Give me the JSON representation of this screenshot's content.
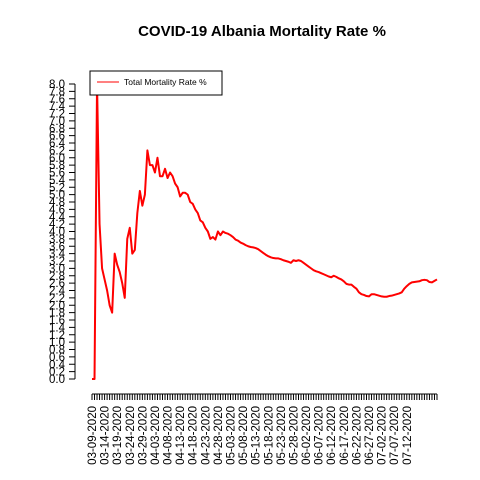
{
  "chart_data": {
    "type": "line",
    "title": "COVID-19 Albania Mortality Rate %",
    "xlabel": "",
    "ylabel": "",
    "ylim": [
      0,
      8.2
    ],
    "y_ticks": [
      "0.0",
      "0.2",
      "0.4",
      "0.6",
      "0.8",
      "1.0",
      "1.2",
      "1.4",
      "1.6",
      "1.8",
      "2.0",
      "2.2",
      "2.4",
      "2.6",
      "2.8",
      "3.0",
      "3.2",
      "3.4",
      "3.6",
      "3.8",
      "4.0",
      "4.2",
      "4.4",
      "4.6",
      "4.8",
      "5.0",
      "5.2",
      "5.4",
      "5.6",
      "5.8",
      "6.0",
      "6.2",
      "6.4",
      "6.6",
      "6.8",
      "7.0",
      "7.2",
      "7.4",
      "7.6",
      "7.8",
      "8.0"
    ],
    "x_labels": [
      "03-09-2020",
      "03-14-2020",
      "03-19-2020",
      "03-24-2020",
      "03-29-2020",
      "04-03-2020",
      "04-08-2020",
      "04-13-2020",
      "04-18-2020",
      "04-23-2020",
      "04-28-2020",
      "05-03-2020",
      "05-08-2020",
      "05-13-2020",
      "05-18-2020",
      "05-23-2020",
      "05-28-2020",
      "06-02-2020",
      "06-07-2020",
      "06-12-2020",
      "06-17-2020",
      "06-22-2020",
      "06-27-2020",
      "07-02-2020",
      "07-07-2020",
      "07-12-2020"
    ],
    "legend": {
      "position": "top-left",
      "entries": [
        "Total Mortality Rate %"
      ]
    },
    "grid": false,
    "series": [
      {
        "name": "Total Mortality Rate %",
        "color": "#ff0000",
        "x_start": "03-09-2020",
        "values": [
          0.0,
          0.0,
          8.0,
          4.2,
          3.0,
          2.7,
          2.4,
          2.0,
          1.8,
          3.4,
          3.1,
          2.9,
          2.6,
          2.2,
          3.8,
          4.1,
          3.4,
          3.5,
          4.5,
          5.1,
          4.7,
          5.0,
          6.2,
          5.8,
          5.8,
          5.6,
          6.0,
          5.5,
          5.5,
          5.7,
          5.45,
          5.6,
          5.5,
          5.3,
          5.2,
          4.95,
          5.05,
          5.05,
          5.0,
          4.8,
          4.75,
          4.6,
          4.5,
          4.3,
          4.25,
          4.1,
          4.0,
          3.8,
          3.85,
          3.78,
          4.0,
          3.9,
          4.0,
          3.96,
          3.94,
          3.9,
          3.85,
          3.78,
          3.75,
          3.7,
          3.67,
          3.63,
          3.6,
          3.58,
          3.57,
          3.55,
          3.52,
          3.47,
          3.42,
          3.37,
          3.33,
          3.3,
          3.28,
          3.27,
          3.27,
          3.25,
          3.22,
          3.2,
          3.18,
          3.15,
          3.22,
          3.2,
          3.22,
          3.2,
          3.15,
          3.1,
          3.05,
          3.0,
          2.95,
          2.92,
          2.9,
          2.87,
          2.84,
          2.81,
          2.78,
          2.76,
          2.8,
          2.77,
          2.73,
          2.7,
          2.65,
          2.58,
          2.56,
          2.56,
          2.5,
          2.45,
          2.35,
          2.3,
          2.28,
          2.25,
          2.24,
          2.3,
          2.3,
          2.28,
          2.26,
          2.24,
          2.23,
          2.23,
          2.25,
          2.26,
          2.28,
          2.3,
          2.32,
          2.35,
          2.45,
          2.52,
          2.58,
          2.62,
          2.63,
          2.64,
          2.65,
          2.68,
          2.69,
          2.68,
          2.63,
          2.62,
          2.66,
          2.7
        ]
      }
    ]
  }
}
